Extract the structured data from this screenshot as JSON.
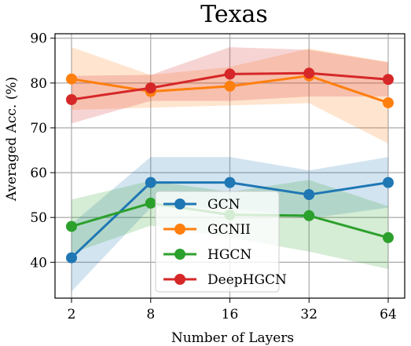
{
  "chart_data": {
    "type": "line",
    "title": "Texas",
    "xlabel": "Number of Layers",
    "ylabel": "Averaged Acc. (%)",
    "x_categories": [
      "2",
      "8",
      "16",
      "32",
      "64"
    ],
    "ylim": [
      32,
      91
    ],
    "yticks": [
      40,
      50,
      60,
      70,
      80,
      90
    ],
    "grid": true,
    "legend_position": "center",
    "series": [
      {
        "name": "GCN",
        "color": "#1f77b4",
        "values": [
          41.0,
          57.8,
          57.8,
          55.1,
          57.8
        ],
        "band_low": [
          33.5,
          52.2,
          52.2,
          49.8,
          52.2
        ],
        "band_high": [
          48.5,
          63.5,
          63.5,
          60.5,
          63.5
        ]
      },
      {
        "name": "GCNII",
        "color": "#ff7f0e",
        "values": [
          80.9,
          78.1,
          79.3,
          81.6,
          75.6
        ],
        "band_low": [
          74.0,
          74.5,
          75.0,
          75.5,
          66.5
        ],
        "band_high": [
          88.0,
          81.8,
          83.6,
          87.7,
          84.7
        ]
      },
      {
        "name": "HGCN",
        "color": "#2ca02c",
        "values": [
          48.0,
          53.2,
          50.6,
          50.4,
          45.5
        ],
        "band_low": [
          42.0,
          48.2,
          45.5,
          42.4,
          38.5
        ],
        "band_high": [
          54.0,
          58.2,
          55.7,
          58.4,
          52.5
        ]
      },
      {
        "name": "DeepHGCN",
        "color": "#d62728",
        "values": [
          76.3,
          78.9,
          82.0,
          82.2,
          80.8
        ],
        "band_low": [
          71.0,
          76.0,
          76.0,
          77.0,
          77.0
        ],
        "band_high": [
          81.6,
          81.8,
          88.0,
          87.4,
          84.6
        ]
      }
    ]
  }
}
